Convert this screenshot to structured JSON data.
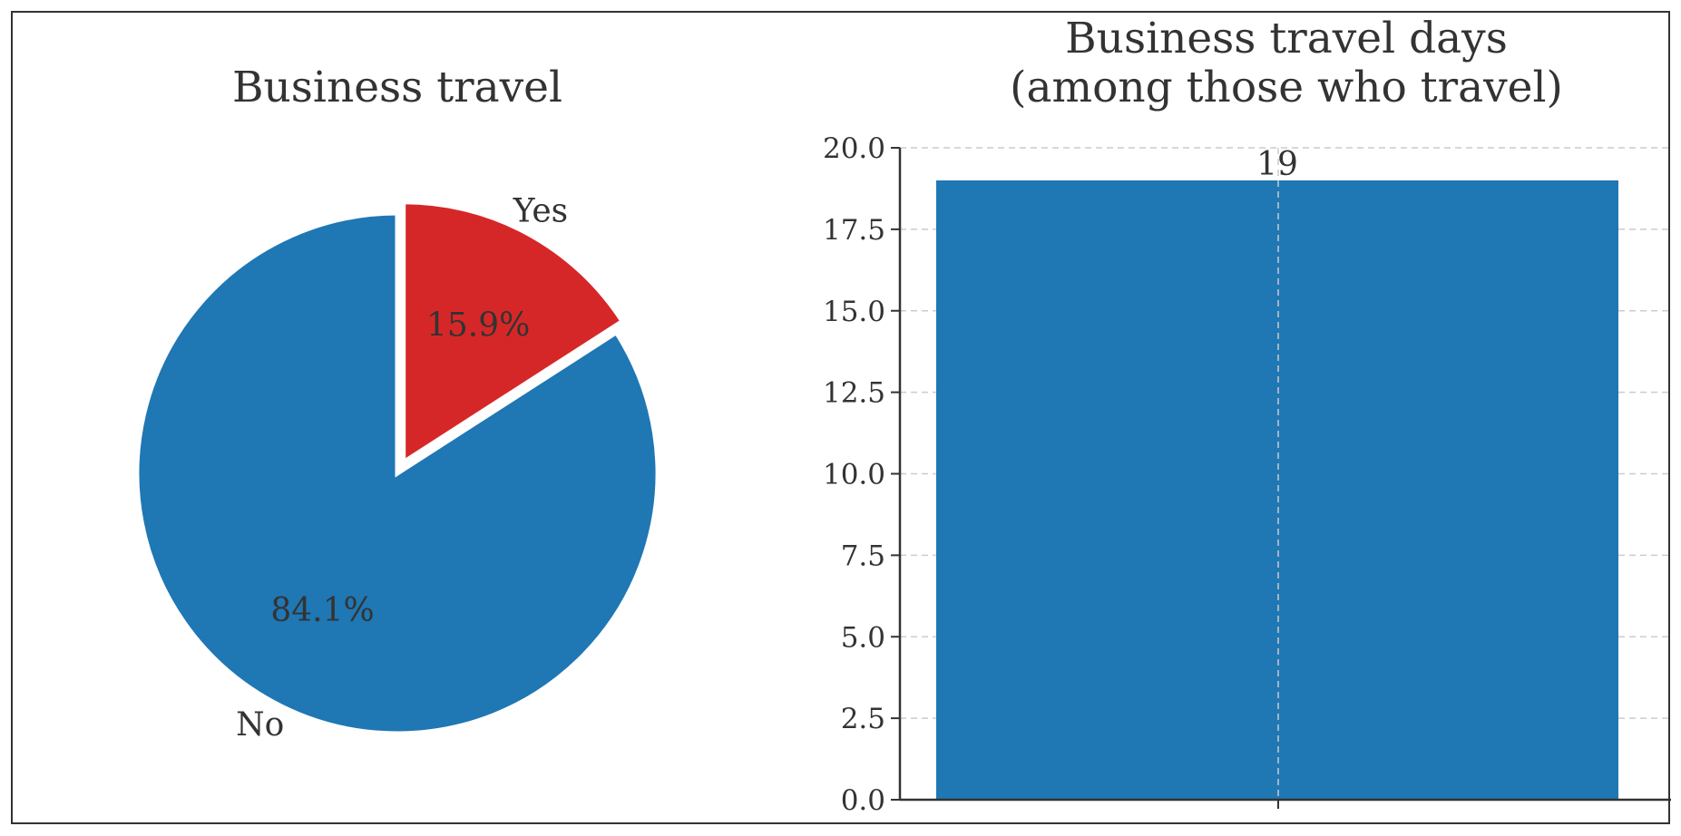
{
  "chart_data": [
    {
      "type": "pie",
      "title": "Business travel",
      "labels": [
        "Yes",
        "No"
      ],
      "values": [
        15.9,
        84.1
      ],
      "value_labels": [
        "15.9%",
        "84.1%"
      ],
      "colors": [
        "#d62728",
        "#1f77b4"
      ],
      "exploded": "Yes",
      "start": "top, clockwise"
    },
    {
      "type": "bar",
      "title_line1": "Business travel days",
      "title_line2": "(among those who travel)",
      "categories": [
        ""
      ],
      "values": [
        19
      ],
      "data_labels": [
        "19"
      ],
      "color": "#1f77b4",
      "ylim": [
        0,
        20
      ],
      "yticks": [
        "0.0",
        "2.5",
        "5.0",
        "7.5",
        "10.0",
        "12.5",
        "15.0",
        "17.5",
        "20.0"
      ],
      "grid": true
    }
  ]
}
